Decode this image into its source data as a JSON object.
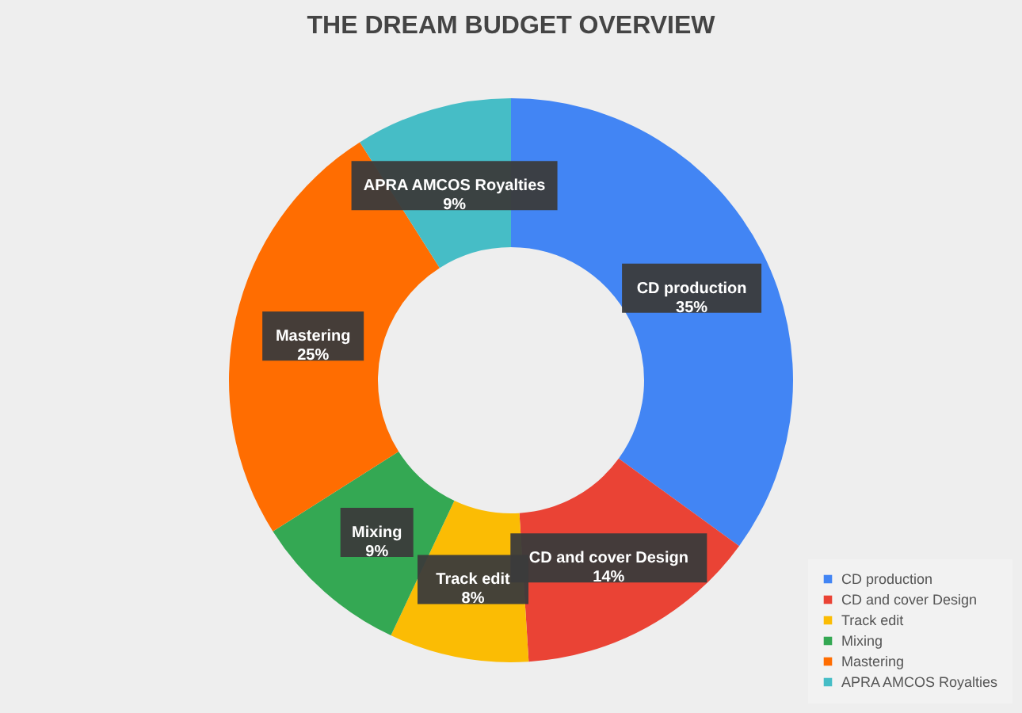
{
  "chart_data": {
    "type": "donut",
    "title": "THE DREAM BUDGET OVERVIEW",
    "categories": [
      "CD production",
      "CD and cover Design",
      "Track edit",
      "Mixing",
      "Mastering",
      "APRA AMCOS Royalties"
    ],
    "values": [
      35,
      14,
      8,
      9,
      25,
      9
    ],
    "colors": [
      "#4285f4",
      "#ea4335",
      "#fbbc04",
      "#34a853",
      "#ff6d01",
      "#46bdc6"
    ],
    "value_labels": [
      "35%",
      "14%",
      "8%",
      "9%",
      "25%",
      "9%"
    ],
    "legend": "bottom right"
  }
}
